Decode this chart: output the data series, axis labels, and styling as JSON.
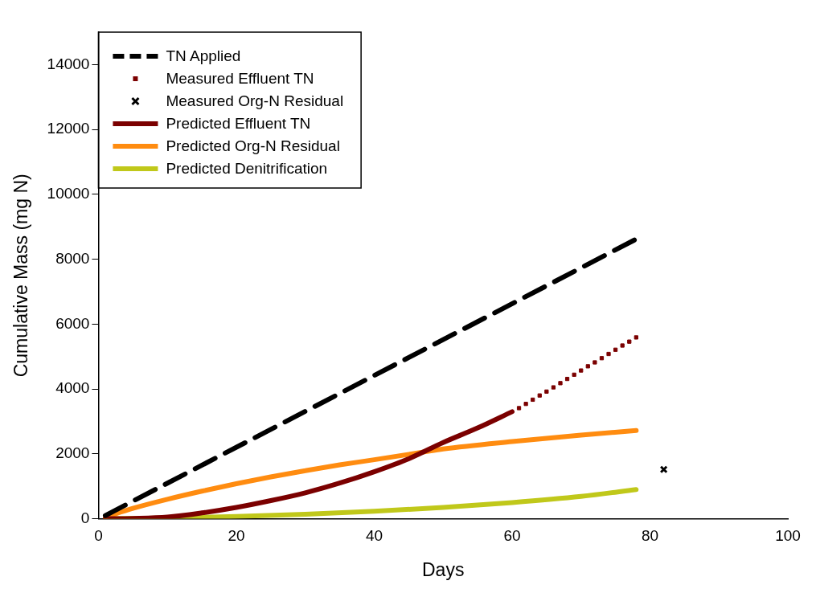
{
  "chart_data": {
    "type": "line",
    "xlabel": "Days",
    "ylabel": "Cumulative Mass (mg N)",
    "xlim": [
      0,
      100
    ],
    "xticks": [
      0,
      20,
      40,
      60,
      80,
      100
    ],
    "ylim": [
      0,
      15000
    ],
    "yticks": [
      0,
      2000,
      4000,
      6000,
      8000,
      10000,
      12000,
      14000
    ],
    "grid": false,
    "legend": "top left",
    "series": [
      {
        "name": "TN Applied",
        "line_style": "dashed",
        "marker": "none",
        "color": "#000000",
        "x": [
          1,
          78
        ],
        "values": [
          100,
          8620
        ]
      },
      {
        "name": "Measured Effluent TN",
        "type": "scatter",
        "marker": "square",
        "color": "#7b0000",
        "x": [
          61,
          62,
          63,
          64,
          65,
          66,
          67,
          68,
          69,
          70,
          71,
          72,
          73,
          74,
          75,
          76,
          77,
          78
        ],
        "values": [
          3410,
          3540,
          3670,
          3800,
          3920,
          4050,
          4180,
          4310,
          4440,
          4570,
          4700,
          4820,
          4950,
          5080,
          5210,
          5340,
          5460,
          5590
        ]
      },
      {
        "name": "Measured Org-N Residual",
        "type": "scatter",
        "marker": "cross",
        "color": "#000000",
        "x": [
          82
        ],
        "values": [
          1520
        ]
      },
      {
        "name": "Predicted Effluent TN",
        "line_style": "solid",
        "marker": "none",
        "color": "#7b0000",
        "x": [
          1,
          5,
          10,
          15,
          20,
          25,
          30,
          35,
          40,
          45,
          50,
          55,
          60
        ],
        "values": [
          0,
          10,
          50,
          180,
          350,
          560,
          800,
          1100,
          1450,
          1850,
          2350,
          2800,
          3300
        ]
      },
      {
        "name": "Predicted Org-N Residual",
        "line_style": "solid",
        "marker": "none",
        "color": "#ff8c10",
        "x": [
          1,
          5,
          10,
          15,
          20,
          25,
          30,
          35,
          40,
          47,
          50,
          60,
          70,
          78
        ],
        "values": [
          50,
          320,
          600,
          850,
          1080,
          1290,
          1480,
          1660,
          1820,
          2050,
          2150,
          2380,
          2580,
          2720
        ]
      },
      {
        "name": "Predicted Denitrification",
        "line_style": "solid",
        "marker": "none",
        "color": "#c0c81a",
        "x": [
          1,
          10,
          20,
          30,
          40,
          50,
          60,
          70,
          78
        ],
        "values": [
          0,
          20,
          70,
          140,
          230,
          350,
          500,
          690,
          900
        ]
      }
    ]
  }
}
